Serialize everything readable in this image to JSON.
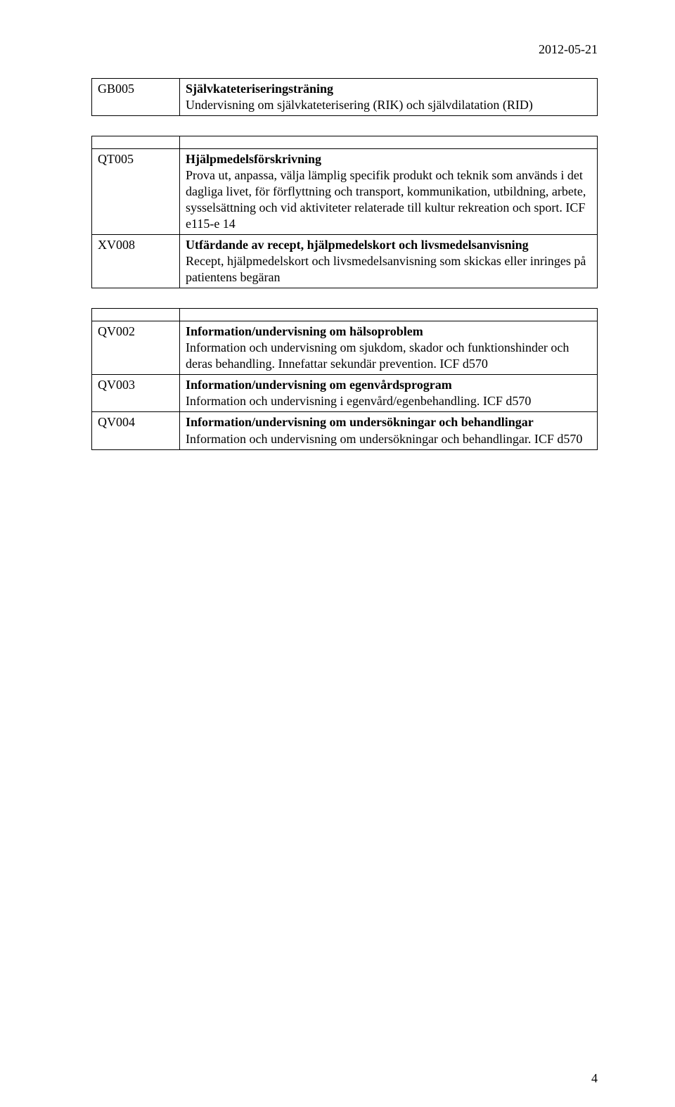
{
  "page_date": "2012-05-21",
  "page_number": "4",
  "tables": [
    {
      "rows": [
        {
          "code": "GB005",
          "title": "Självkateteriseringsträning",
          "desc": "Undervisning om självkateterisering (RIK) och självdilatation (RID)"
        }
      ]
    },
    {
      "spacer": true,
      "rows": [
        {
          "code": "QT005",
          "title": "Hjälpmedelsförskrivning",
          "desc": "Prova ut, anpassa, välja lämplig specifik produkt och teknik som används i det dagliga livet, för förflyttning och transport, kommunikation, utbildning, arbete, sysselsättning och vid aktiviteter relaterade till kultur rekreation och sport. ICF e115-e 14"
        },
        {
          "code": "XV008",
          "title": "Utfärdande av recept, hjälpmedelskort och livsmedelsanvisning",
          "desc": "Recept, hjälpmedelskort och livsmedelsanvisning som skickas eller inringes på patientens begäran"
        }
      ]
    },
    {
      "spacer": true,
      "rows": [
        {
          "code": "QV002",
          "title": "Information/undervisning om hälsoproblem",
          "desc": "Information och undervisning om sjukdom, skador och funktionshinder och deras behandling. Innefattar sekundär prevention. ICF d570"
        },
        {
          "code": "QV003",
          "title": "Information/undervisning om egenvårdsprogram",
          "desc": "Information och undervisning i egenvård/egenbehandling. ICF d570"
        },
        {
          "code": "QV004",
          "title": "Information/undervisning om undersökningar och behandlingar",
          "desc": "Information och undervisning om undersökningar och behandlingar. ICF d570"
        }
      ]
    }
  ]
}
